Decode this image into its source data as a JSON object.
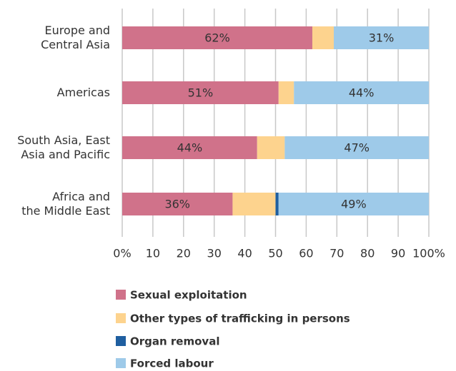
{
  "chart_data": {
    "type": "stacked_bar_horizontal",
    "categories": [
      "Europe and\nCentral Asia",
      "Americas",
      "South Asia, East\nAsia and Pacific",
      "Africa and\nthe Middle East"
    ],
    "series": [
      {
        "name": "Sexual exploitation",
        "color": "#d0728a",
        "values": [
          62,
          51,
          44,
          36
        ],
        "value_labels": [
          "62%",
          "51%",
          "44%",
          "36%"
        ]
      },
      {
        "name": "Other types of trafficking in persons",
        "color": "#fdd38e",
        "values": [
          7,
          5,
          9,
          14
        ]
      },
      {
        "name": "Organ removal",
        "color": "#1f5fa0",
        "values": [
          0,
          0,
          0,
          1
        ]
      },
      {
        "name": "Forced labour",
        "color": "#9ecae9",
        "values": [
          31,
          44,
          47,
          49
        ],
        "value_labels": [
          "31%",
          "44%",
          "47%",
          "49%"
        ]
      }
    ],
    "xlim": [
      0,
      100
    ],
    "xticks": [
      {
        "value": 0,
        "label": "0%"
      },
      {
        "value": 10,
        "label": "10"
      },
      {
        "value": 20,
        "label": "20"
      },
      {
        "value": 30,
        "label": "30"
      },
      {
        "value": 40,
        "label": "40"
      },
      {
        "value": 50,
        "label": "50"
      },
      {
        "value": 60,
        "label": "60"
      },
      {
        "value": 70,
        "label": "70"
      },
      {
        "value": 80,
        "label": "80"
      },
      {
        "value": 90,
        "label": "90"
      },
      {
        "value": 100,
        "label": "100%"
      }
    ],
    "grid": true
  }
}
